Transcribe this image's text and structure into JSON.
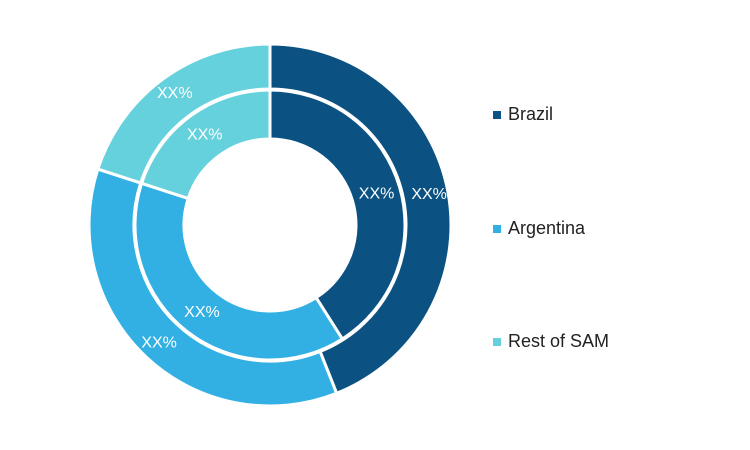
{
  "chart_data": {
    "type": "pie",
    "variant": "nested-donut",
    "categories": [
      "Brazil",
      "Argentina",
      "Rest of SAM"
    ],
    "colors": [
      "#0b5283",
      "#33b0e3",
      "#65d1dc"
    ],
    "series": [
      {
        "values": [
          44,
          36,
          20
        ],
        "labels": [
          "XX%",
          "XX%",
          "XX%"
        ]
      },
      {
        "values": [
          41,
          39,
          20
        ],
        "labels": [
          "XX%",
          "XX%",
          "XX%"
        ]
      }
    ],
    "legend": {
      "position": "right",
      "items": [
        "Brazil",
        "Argentina",
        "Rest of SAM"
      ]
    }
  }
}
